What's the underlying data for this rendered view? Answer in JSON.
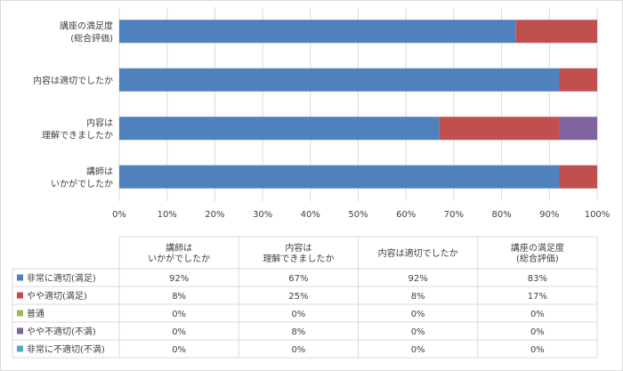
{
  "chart_data": {
    "type": "bar",
    "orientation": "horizontal",
    "stacked": "percent",
    "categories": [
      [
        "講座の満足度",
        "(総合評価)"
      ],
      [
        "内容は適切でしたか"
      ],
      [
        "内容は",
        "理解できましたか"
      ],
      [
        "講師は",
        "いかがでしたか"
      ]
    ],
    "series": [
      {
        "name": "非常に適切(満足)",
        "color": "#4f81bd",
        "values": [
          83,
          92,
          67,
          92
        ],
        "labels": [
          "83%",
          "92%",
          "67%",
          "92%"
        ]
      },
      {
        "name": "やや適切(満足)",
        "color": "#c0504d",
        "values": [
          17,
          8,
          25,
          8
        ],
        "labels": [
          "17%",
          "8%",
          "25%",
          "8%"
        ]
      },
      {
        "name": "普通",
        "color": "#9bbb59",
        "values": [
          0,
          0,
          0,
          0
        ],
        "labels": [
          "0%",
          "0%",
          "0%",
          "0%"
        ]
      },
      {
        "name": "やや不適切(不満)",
        "color": "#8064a2",
        "values": [
          0,
          0,
          8,
          0
        ],
        "labels": [
          "0%",
          "0%",
          "8%",
          "0%"
        ]
      },
      {
        "name": "非常に不適切(不満)",
        "color": "#4bacc6",
        "values": [
          0,
          0,
          0,
          0
        ],
        "labels": [
          "0%",
          "0%",
          "0%",
          "0%"
        ]
      }
    ],
    "x_ticks": [
      "0%",
      "10%",
      "20%",
      "30%",
      "40%",
      "50%",
      "60%",
      "70%",
      "80%",
      "90%",
      "100%"
    ],
    "xlim": [
      0,
      100
    ],
    "grid": "vertical",
    "legend": "data-table"
  }
}
